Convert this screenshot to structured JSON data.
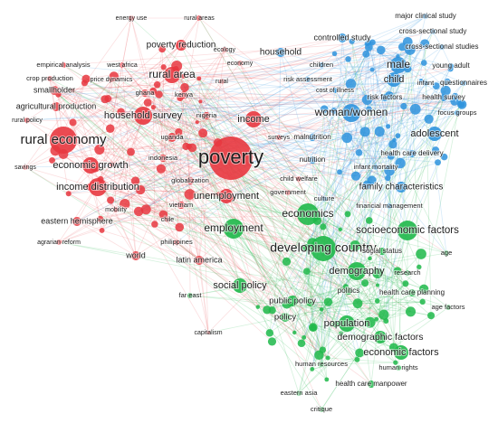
{
  "nodes": [
    {
      "label": "energy use"
    },
    {
      "label": "rural areas"
    },
    {
      "label": "poverty reduction"
    },
    {
      "label": "ecology"
    },
    {
      "label": "empirical analysis"
    },
    {
      "label": "west africa"
    },
    {
      "label": "economy"
    },
    {
      "label": "rural area"
    },
    {
      "label": "crop production"
    },
    {
      "label": "price dynamics"
    },
    {
      "label": "smallholder"
    },
    {
      "label": "ghana"
    },
    {
      "label": "kenya"
    },
    {
      "label": "rural"
    },
    {
      "label": "agricultural production"
    },
    {
      "label": "household survey"
    },
    {
      "label": "nigeria"
    },
    {
      "label": "rural policy"
    },
    {
      "label": "rural economy"
    },
    {
      "label": "uganda"
    },
    {
      "label": "poverty"
    },
    {
      "label": "indonesia"
    },
    {
      "label": "savings"
    },
    {
      "label": "economic growth"
    },
    {
      "label": "income distribution"
    },
    {
      "label": "globalization"
    },
    {
      "label": "unemployment"
    },
    {
      "label": "vietnam"
    },
    {
      "label": "chile"
    },
    {
      "label": "mobility"
    },
    {
      "label": "eastern hemisphere"
    },
    {
      "label": "philippines"
    },
    {
      "label": "agrarian reform"
    },
    {
      "label": "world"
    },
    {
      "label": "latin america"
    },
    {
      "label": "capitalism"
    },
    {
      "label": "income"
    },
    {
      "label": "surveys"
    },
    {
      "label": "child welfare"
    },
    {
      "label": "government"
    },
    {
      "label": "major clinical study"
    },
    {
      "label": "cross-sectional study"
    },
    {
      "label": "controlled study"
    },
    {
      "label": "household"
    },
    {
      "label": "cross-sectional studies"
    },
    {
      "label": "children"
    },
    {
      "label": "male"
    },
    {
      "label": "young adult"
    },
    {
      "label": "risk assessment"
    },
    {
      "label": "child"
    },
    {
      "label": "infant"
    },
    {
      "label": "questionnaires"
    },
    {
      "label": "cost of illness"
    },
    {
      "label": "woman/women"
    },
    {
      "label": "risk factors"
    },
    {
      "label": "health survey"
    },
    {
      "label": "focus groups"
    },
    {
      "label": "malnutrition"
    },
    {
      "label": "adolescent"
    },
    {
      "label": "nutrition"
    },
    {
      "label": "health care delivery"
    },
    {
      "label": "infant mortality"
    },
    {
      "label": "family characteristics"
    },
    {
      "label": "culture"
    },
    {
      "label": "financial management"
    },
    {
      "label": "economics"
    },
    {
      "label": "employment"
    },
    {
      "label": "socioeconomic factors"
    },
    {
      "label": "developing country"
    },
    {
      "label": "social status"
    },
    {
      "label": "age"
    },
    {
      "label": "demography"
    },
    {
      "label": "research"
    },
    {
      "label": "social policy"
    },
    {
      "label": "far east"
    },
    {
      "label": "politics"
    },
    {
      "label": "public policy"
    },
    {
      "label": "health care planning"
    },
    {
      "label": "age factors"
    },
    {
      "label": "policy"
    },
    {
      "label": "population"
    },
    {
      "label": "demographic factors"
    },
    {
      "label": "economic factors"
    },
    {
      "label": "human resources"
    },
    {
      "label": "human rights"
    },
    {
      "label": "eastern asia"
    },
    {
      "label": "health care manpower"
    },
    {
      "label": "critique"
    }
  ]
}
